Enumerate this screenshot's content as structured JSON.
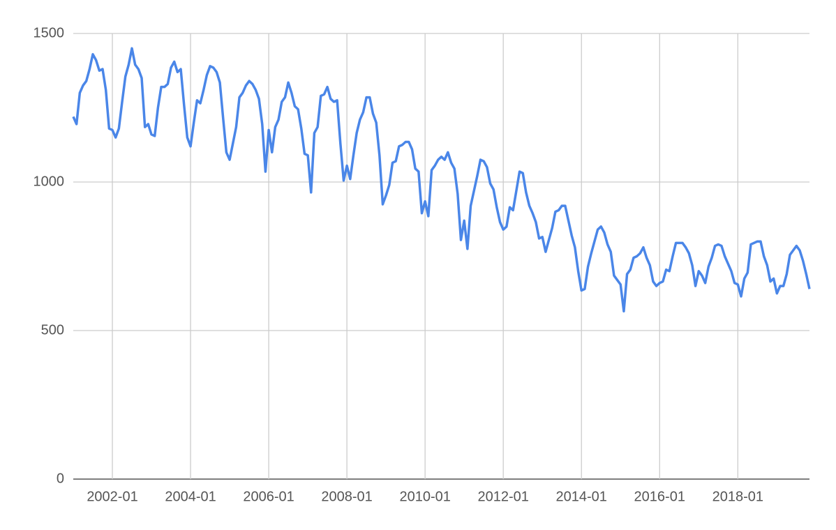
{
  "chart_data": {
    "type": "line",
    "x": [
      "2001-01",
      "2001-02",
      "2001-03",
      "2001-04",
      "2001-05",
      "2001-06",
      "2001-07",
      "2001-08",
      "2001-09",
      "2001-10",
      "2001-11",
      "2001-12",
      "2002-01",
      "2002-02",
      "2002-03",
      "2002-04",
      "2002-05",
      "2002-06",
      "2002-07",
      "2002-08",
      "2002-09",
      "2002-10",
      "2002-11",
      "2002-12",
      "2003-01",
      "2003-02",
      "2003-03",
      "2003-04",
      "2003-05",
      "2003-06",
      "2003-07",
      "2003-08",
      "2003-09",
      "2003-10",
      "2003-11",
      "2003-12",
      "2004-01",
      "2004-02",
      "2004-03",
      "2004-04",
      "2004-05",
      "2004-06",
      "2004-07",
      "2004-08",
      "2004-09",
      "2004-10",
      "2004-11",
      "2004-12",
      "2005-01",
      "2005-02",
      "2005-03",
      "2005-04",
      "2005-05",
      "2005-06",
      "2005-07",
      "2005-08",
      "2005-09",
      "2005-10",
      "2005-11",
      "2005-12",
      "2006-01",
      "2006-02",
      "2006-03",
      "2006-04",
      "2006-05",
      "2006-06",
      "2006-07",
      "2006-08",
      "2006-09",
      "2006-10",
      "2006-11",
      "2006-12",
      "2007-01",
      "2007-02",
      "2007-03",
      "2007-04",
      "2007-05",
      "2007-06",
      "2007-07",
      "2007-08",
      "2007-09",
      "2007-10",
      "2007-11",
      "2007-12",
      "2008-01",
      "2008-02",
      "2008-03",
      "2008-04",
      "2008-05",
      "2008-06",
      "2008-07",
      "2008-08",
      "2008-09",
      "2008-10",
      "2008-11",
      "2008-12",
      "2009-01",
      "2009-02",
      "2009-03",
      "2009-04",
      "2009-05",
      "2009-06",
      "2009-07",
      "2009-08",
      "2009-09",
      "2009-10",
      "2009-11",
      "2009-12",
      "2010-01",
      "2010-02",
      "2010-03",
      "2010-04",
      "2010-05",
      "2010-06",
      "2010-07",
      "2010-08",
      "2010-09",
      "2010-10",
      "2010-11",
      "2010-12",
      "2011-01",
      "2011-02",
      "2011-03",
      "2011-04",
      "2011-05",
      "2011-06",
      "2011-07",
      "2011-08",
      "2011-09",
      "2011-10",
      "2011-11",
      "2011-12",
      "2012-01",
      "2012-02",
      "2012-03",
      "2012-04",
      "2012-05",
      "2012-06",
      "2012-07",
      "2012-08",
      "2012-09",
      "2012-10",
      "2012-11",
      "2012-12",
      "2013-01",
      "2013-02",
      "2013-03",
      "2013-04",
      "2013-05",
      "2013-06",
      "2013-07",
      "2013-08",
      "2013-09",
      "2013-10",
      "2013-11",
      "2013-12",
      "2014-01",
      "2014-02",
      "2014-03",
      "2014-04",
      "2014-05",
      "2014-06",
      "2014-07",
      "2014-08",
      "2014-09",
      "2014-10",
      "2014-11",
      "2014-12",
      "2015-01",
      "2015-02",
      "2015-03",
      "2015-04",
      "2015-05",
      "2015-06",
      "2015-07",
      "2015-08",
      "2015-09",
      "2015-10",
      "2015-11",
      "2015-12",
      "2016-01",
      "2016-02",
      "2016-03",
      "2016-04",
      "2016-05",
      "2016-06",
      "2016-07",
      "2016-08",
      "2016-09",
      "2016-10",
      "2016-11",
      "2016-12",
      "2017-01",
      "2017-02",
      "2017-03",
      "2017-04",
      "2017-05",
      "2017-06",
      "2017-07",
      "2017-08",
      "2017-09",
      "2017-10",
      "2017-11",
      "2017-12",
      "2018-01",
      "2018-02",
      "2018-03",
      "2018-04",
      "2018-05",
      "2018-06",
      "2018-07",
      "2018-08",
      "2018-09",
      "2018-10",
      "2018-11",
      "2018-12",
      "2019-01",
      "2019-02",
      "2019-03",
      "2019-04",
      "2019-05",
      "2019-06",
      "2019-07",
      "2019-08",
      "2019-09",
      "2019-10",
      "2019-11"
    ],
    "values": [
      1220,
      1195,
      1300,
      1325,
      1340,
      1380,
      1430,
      1410,
      1375,
      1380,
      1310,
      1180,
      1175,
      1150,
      1180,
      1270,
      1355,
      1395,
      1450,
      1395,
      1380,
      1350,
      1185,
      1195,
      1160,
      1155,
      1250,
      1320,
      1320,
      1330,
      1385,
      1405,
      1370,
      1380,
      1260,
      1150,
      1120,
      1200,
      1275,
      1265,
      1310,
      1360,
      1390,
      1385,
      1370,
      1335,
      1215,
      1100,
      1075,
      1130,
      1185,
      1285,
      1300,
      1325,
      1340,
      1330,
      1310,
      1280,
      1195,
      1035,
      1175,
      1100,
      1185,
      1210,
      1270,
      1285,
      1335,
      1300,
      1255,
      1245,
      1180,
      1095,
      1090,
      965,
      1165,
      1185,
      1290,
      1295,
      1320,
      1280,
      1270,
      1275,
      1130,
      1005,
      1055,
      1010,
      1090,
      1165,
      1210,
      1235,
      1285,
      1285,
      1230,
      1200,
      1090,
      925,
      955,
      990,
      1065,
      1070,
      1120,
      1125,
      1135,
      1135,
      1110,
      1045,
      1035,
      895,
      935,
      885,
      1040,
      1055,
      1075,
      1085,
      1075,
      1100,
      1065,
      1045,
      960,
      805,
      870,
      775,
      920,
      970,
      1020,
      1075,
      1070,
      1050,
      995,
      975,
      915,
      865,
      840,
      850,
      915,
      905,
      970,
      1035,
      1030,
      965,
      920,
      895,
      865,
      810,
      815,
      765,
      805,
      845,
      900,
      905,
      920,
      920,
      870,
      820,
      780,
      700,
      635,
      640,
      715,
      760,
      800,
      840,
      850,
      830,
      790,
      765,
      685,
      670,
      655,
      565,
      690,
      705,
      745,
      750,
      760,
      780,
      745,
      720,
      665,
      650,
      660,
      665,
      705,
      700,
      750,
      795,
      795,
      795,
      780,
      760,
      720,
      650,
      700,
      685,
      660,
      715,
      745,
      785,
      790,
      785,
      750,
      725,
      700,
      660,
      655,
      615,
      675,
      695,
      790,
      795,
      800,
      800,
      750,
      720,
      665,
      675,
      625,
      650,
      650,
      690,
      755,
      770,
      785,
      770,
      735,
      690,
      640
    ],
    "color": "#4a86e8",
    "xlim": [
      "2001-01",
      "2019-11"
    ],
    "xticks": [
      "2002-01",
      "2004-01",
      "2006-01",
      "2008-01",
      "2010-01",
      "2012-01",
      "2014-01",
      "2016-01",
      "2018-01"
    ],
    "ylim": [
      0,
      1500
    ],
    "yticks": [
      0,
      500,
      1000,
      1500
    ],
    "grid": true
  }
}
